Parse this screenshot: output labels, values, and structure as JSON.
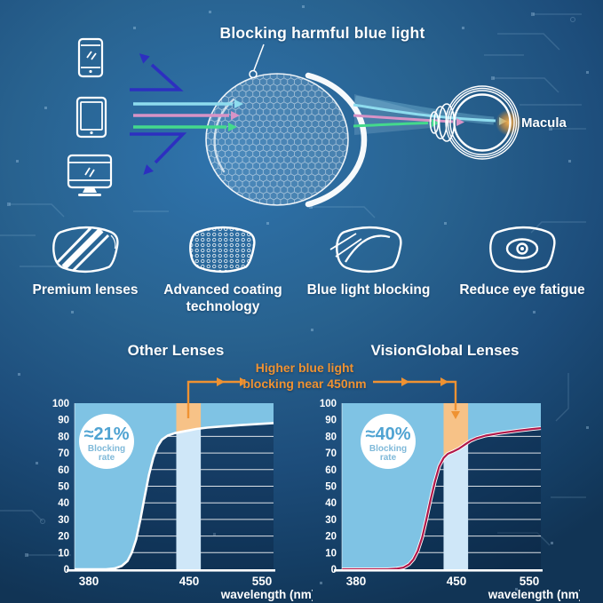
{
  "header": {
    "title": "Blocking harmful blue light",
    "macula_label": "Macula"
  },
  "features": [
    {
      "label": "Premium lenses",
      "icon": "striped-lens-icon"
    },
    {
      "label": "Advanced coating technology",
      "icon": "coated-lens-icon"
    },
    {
      "label": "Blue light blocking",
      "icon": "ray-deflect-lens-icon"
    },
    {
      "label": "Reduce eye fatigue",
      "icon": "eye-lens-icon"
    }
  ],
  "comparison": {
    "annotation": "Higher blue light\nblocking near 450nm"
  },
  "colors": {
    "accent_orange": "#ef9232",
    "band_orange": "#f7c287",
    "area_blue": "#7fc3e4",
    "band_pale": "#cfe7f8",
    "curve_red": "#b1194a",
    "ray_indigo": "#2d2fc0",
    "ray_cyan": "#8edcee",
    "ray_pink": "#d793c6",
    "ray_green": "#44d98c",
    "icon_white": "#ffffff",
    "badge_text": "#4fa3d2"
  },
  "chart_data": [
    {
      "type": "area",
      "title": "Other Lenses",
      "badge_value": "≈21%",
      "badge_label": "Blocking rate",
      "xlabel": "wavelength (nm)",
      "xticks": [
        380,
        450,
        550
      ],
      "yticks": [
        0,
        10,
        20,
        30,
        40,
        50,
        60,
        70,
        80,
        90,
        100
      ],
      "ylim": [
        0,
        100
      ],
      "xlim_nm": [
        370,
        566
      ],
      "highlight_band_nm": [
        441,
        466
      ],
      "area_color": "#7fc3e4",
      "band_color": "#cfe7f8",
      "band_highlight_color": "#f7c287",
      "curve_color": "#ffffff",
      "curve": [
        [
          370,
          0
        ],
        [
          392,
          0
        ],
        [
          398,
          0.5
        ],
        [
          403,
          2
        ],
        [
          407,
          5
        ],
        [
          410,
          10
        ],
        [
          413,
          18
        ],
        [
          416,
          30
        ],
        [
          419,
          44
        ],
        [
          422,
          57
        ],
        [
          425,
          67
        ],
        [
          428,
          74
        ],
        [
          431,
          78
        ],
        [
          435,
          80.5
        ],
        [
          440,
          82
        ],
        [
          446,
          83
        ],
        [
          452,
          83.8
        ],
        [
          460,
          84.5
        ],
        [
          475,
          85.3
        ],
        [
          495,
          86
        ],
        [
          520,
          86.8
        ],
        [
          545,
          87.5
        ],
        [
          566,
          88
        ]
      ]
    },
    {
      "type": "area",
      "title": "VisionGlobal Lenses",
      "badge_value": "≈40%",
      "badge_label": "Blocking rate",
      "xlabel": "wavelength (nm)",
      "xticks": [
        380,
        450,
        550
      ],
      "yticks": [
        0,
        10,
        20,
        30,
        40,
        50,
        60,
        70,
        80,
        90,
        100
      ],
      "ylim": [
        0,
        100
      ],
      "xlim_nm": [
        370,
        566
      ],
      "highlight_band_nm": [
        441,
        466
      ],
      "area_color": "#7fc3e4",
      "band_color": "#cfe7f8",
      "band_highlight_color": "#f7c287",
      "curve_color": "#b1194a",
      "curve_casing": "#ffffff",
      "curve": [
        [
          370,
          0
        ],
        [
          402,
          0
        ],
        [
          408,
          0.3
        ],
        [
          413,
          1
        ],
        [
          417,
          3
        ],
        [
          420,
          6
        ],
        [
          423,
          11
        ],
        [
          426,
          19
        ],
        [
          429,
          30
        ],
        [
          432,
          42
        ],
        [
          435,
          53
        ],
        [
          438,
          62
        ],
        [
          441,
          67
        ],
        [
          444,
          69.5
        ],
        [
          448,
          71
        ],
        [
          453,
          72.5
        ],
        [
          458,
          74
        ],
        [
          463,
          75.5
        ],
        [
          470,
          77.5
        ],
        [
          478,
          79
        ],
        [
          490,
          80.5
        ],
        [
          510,
          82
        ],
        [
          535,
          83.5
        ],
        [
          555,
          84.5
        ],
        [
          566,
          85
        ]
      ]
    }
  ]
}
